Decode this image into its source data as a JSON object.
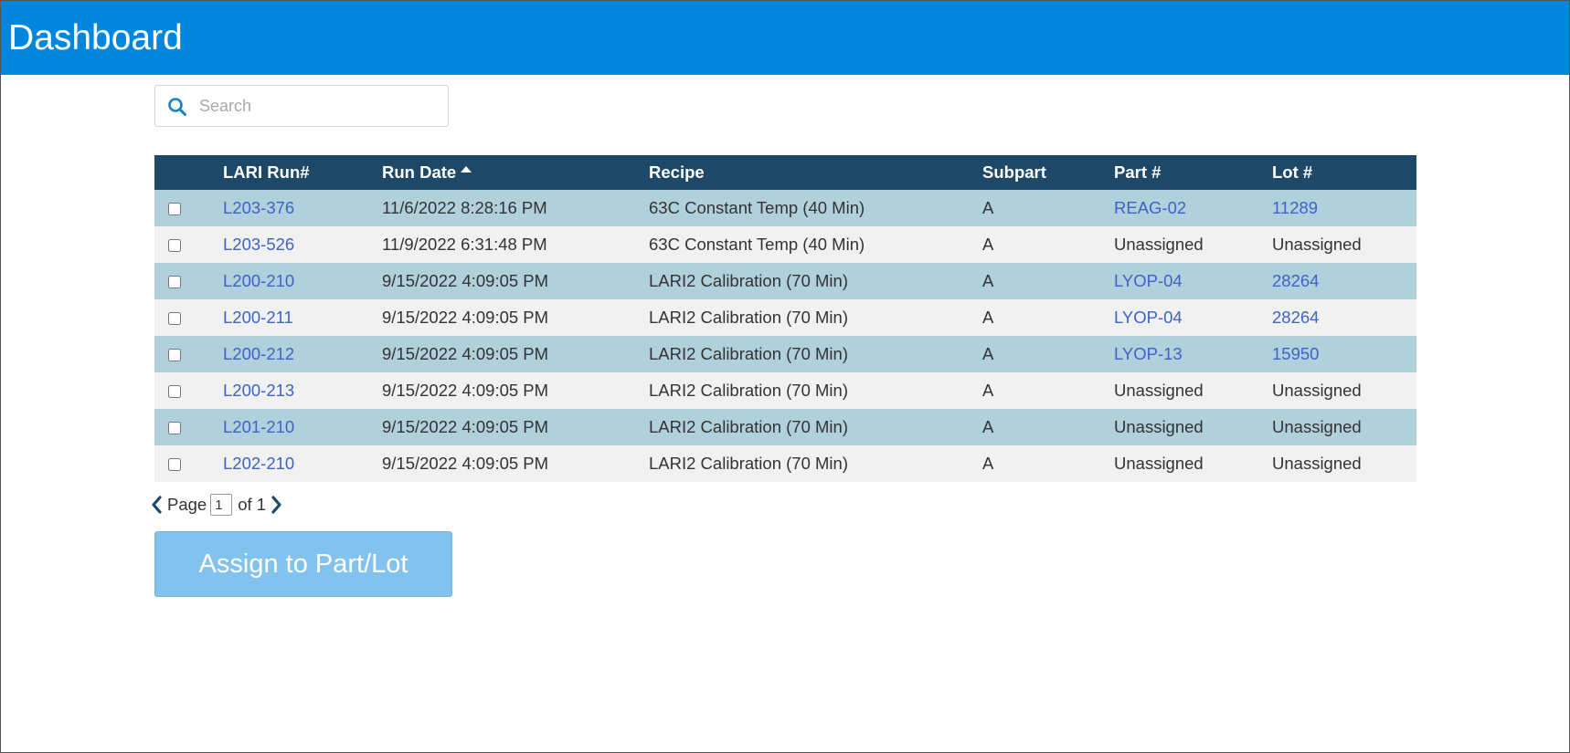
{
  "header": {
    "title": "Dashboard"
  },
  "search": {
    "placeholder": "Search",
    "value": ""
  },
  "table": {
    "columns": [
      "",
      "LARI Run#",
      "Run Date",
      "Recipe",
      "Subpart",
      "Part #",
      "Lot #"
    ],
    "sort": {
      "column": "Run Date",
      "direction": "ascending"
    },
    "rows": [
      {
        "checked": false,
        "run": "L203-376",
        "date": "11/6/2022 8:28:16 PM",
        "recipe": "63C Constant Temp (40 Min)",
        "subpart": "A",
        "part": "REAG-02",
        "lot": "11289"
      },
      {
        "checked": false,
        "run": "L203-526",
        "date": "11/9/2022 6:31:48 PM",
        "recipe": "63C Constant Temp (40 Min)",
        "subpart": "A",
        "part": "Unassigned",
        "lot": "Unassigned"
      },
      {
        "checked": false,
        "run": "L200-210",
        "date": "9/15/2022 4:09:05 PM",
        "recipe": "LARI2 Calibration (70 Min)",
        "subpart": "A",
        "part": "LYOP-04",
        "lot": "28264"
      },
      {
        "checked": false,
        "run": "L200-211",
        "date": "9/15/2022 4:09:05 PM",
        "recipe": "LARI2 Calibration (70 Min)",
        "subpart": "A",
        "part": "LYOP-04",
        "lot": "28264"
      },
      {
        "checked": false,
        "run": "L200-212",
        "date": "9/15/2022 4:09:05 PM",
        "recipe": "LARI2 Calibration (70 Min)",
        "subpart": "A",
        "part": "LYOP-13",
        "lot": "15950"
      },
      {
        "checked": false,
        "run": "L200-213",
        "date": "9/15/2022 4:09:05 PM",
        "recipe": "LARI2 Calibration (70 Min)",
        "subpart": "A",
        "part": "Unassigned",
        "lot": "Unassigned"
      },
      {
        "checked": false,
        "run": "L201-210",
        "date": "9/15/2022 4:09:05 PM",
        "recipe": "LARI2 Calibration (70 Min)",
        "subpart": "A",
        "part": "Unassigned",
        "lot": "Unassigned"
      },
      {
        "checked": false,
        "run": "L202-210",
        "date": "9/15/2022 4:09:05 PM",
        "recipe": "LARI2 Calibration (70 Min)",
        "subpart": "A",
        "part": "Unassigned",
        "lot": "Unassigned"
      }
    ]
  },
  "pagination": {
    "label": "Page",
    "current": "1",
    "of_label": "of 1"
  },
  "actions": {
    "assign_label": "Assign to Part/Lot"
  },
  "colors": {
    "header": "#0087dd",
    "table_header": "#1e4868",
    "row_odd": "#b0d0dc",
    "row_even": "#f1f1f1",
    "link": "#3f63c6",
    "button": "#82c2ee"
  },
  "icons": {
    "search": "search-icon",
    "sort": "sort-ascending-icon",
    "prev": "chevron-left-icon",
    "next": "chevron-right-icon"
  }
}
